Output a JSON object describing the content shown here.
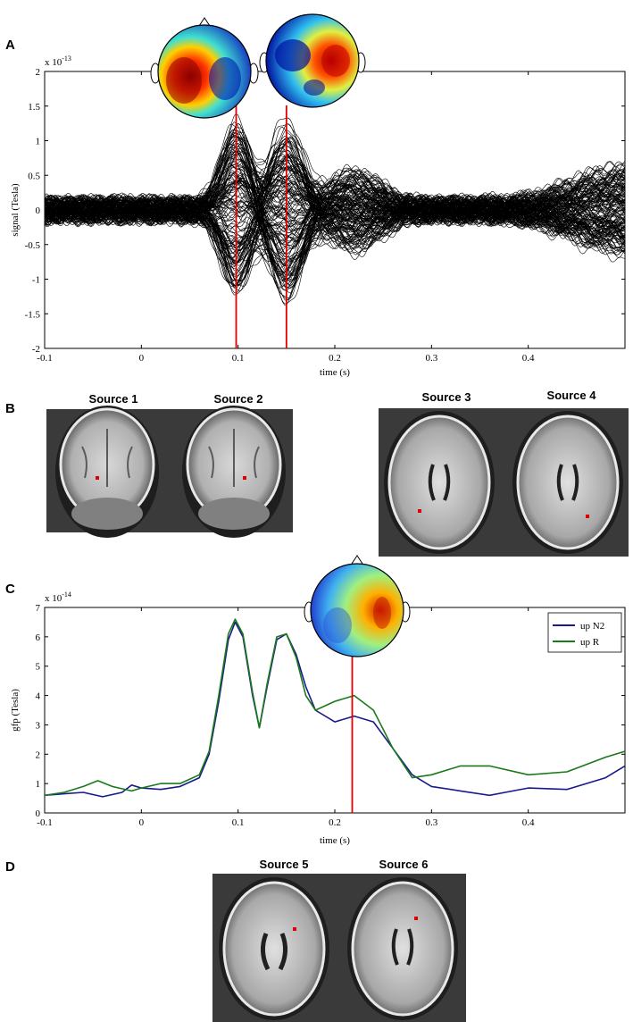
{
  "panels": {
    "a": "A",
    "b": "B",
    "c": "C",
    "d": "D"
  },
  "sources": [
    "Source 1",
    "Source 2",
    "Source 3",
    "Source 4",
    "Source 5",
    "Source 6"
  ],
  "colors": {
    "marker": "#e00000",
    "trace": "#000000",
    "upN2": "#1a1a8c",
    "upR": "#1a7a1a",
    "mri_bg": "#3a3a3a"
  },
  "chart_data": [
    {
      "type": "line",
      "panel": "A",
      "xlabel": "time (s)",
      "ylabel": "signal (Tesla)",
      "exponent_base": "x 10",
      "exponent_power": "-13",
      "xlim": [
        -0.1,
        0.5
      ],
      "ylim": [
        -2,
        2
      ],
      "xticks": [
        -0.1,
        0,
        0.1,
        0.2,
        0.3,
        0.4
      ],
      "yticks": [
        -2,
        -1.5,
        -1,
        -0.5,
        0,
        0.5,
        1,
        1.5,
        2
      ],
      "markers_x": [
        0.098,
        0.15
      ],
      "peaks": [
        {
          "t": 0.098,
          "amp": 1.25
        },
        {
          "t": 0.15,
          "amp": 1.25
        }
      ],
      "trace_count": 150
    },
    {
      "type": "line",
      "panel": "C",
      "xlabel": "time (s)",
      "ylabel": "gfp (Tesla)",
      "exponent_base": "x 10",
      "exponent_power": "-14",
      "xlim": [
        -0.1,
        0.5
      ],
      "ylim": [
        0,
        7
      ],
      "xticks": [
        -0.1,
        0,
        0.1,
        0.2,
        0.3,
        0.4
      ],
      "yticks": [
        0,
        1,
        2,
        3,
        4,
        5,
        6,
        7
      ],
      "markers_x": [
        0.218
      ],
      "legend_position": "top-right",
      "series": [
        {
          "name": "up N2",
          "color": "#1a1a8c",
          "x": [
            -0.1,
            -0.08,
            -0.06,
            -0.04,
            -0.02,
            -0.01,
            0.0,
            0.02,
            0.04,
            0.06,
            0.07,
            0.08,
            0.09,
            0.097,
            0.105,
            0.115,
            0.122,
            0.13,
            0.14,
            0.15,
            0.16,
            0.17,
            0.18,
            0.2,
            0.22,
            0.24,
            0.26,
            0.28,
            0.3,
            0.33,
            0.36,
            0.4,
            0.44,
            0.48,
            0.5
          ],
          "y": [
            0.6,
            0.65,
            0.7,
            0.55,
            0.7,
            0.95,
            0.85,
            0.8,
            0.9,
            1.2,
            2.0,
            3.8,
            5.9,
            6.5,
            6.0,
            4.0,
            2.9,
            4.3,
            5.9,
            6.1,
            5.4,
            4.3,
            3.5,
            3.1,
            3.3,
            3.1,
            2.2,
            1.3,
            0.9,
            0.75,
            0.6,
            0.85,
            0.8,
            1.2,
            1.6
          ]
        },
        {
          "name": "up R",
          "color": "#1a7a1a",
          "x": [
            -0.1,
            -0.08,
            -0.06,
            -0.045,
            -0.03,
            -0.01,
            0.0,
            0.02,
            0.04,
            0.06,
            0.07,
            0.08,
            0.09,
            0.097,
            0.105,
            0.115,
            0.122,
            0.13,
            0.14,
            0.15,
            0.16,
            0.17,
            0.18,
            0.2,
            0.22,
            0.24,
            0.26,
            0.28,
            0.3,
            0.33,
            0.36,
            0.4,
            0.44,
            0.48,
            0.5
          ],
          "y": [
            0.6,
            0.7,
            0.9,
            1.1,
            0.9,
            0.75,
            0.85,
            1.0,
            1.0,
            1.3,
            2.1,
            4.0,
            6.1,
            6.6,
            6.1,
            4.1,
            2.9,
            4.4,
            6.0,
            6.1,
            5.3,
            4.0,
            3.5,
            3.8,
            4.0,
            3.5,
            2.2,
            1.2,
            1.3,
            1.6,
            1.6,
            1.3,
            1.4,
            1.9,
            2.1
          ]
        }
      ]
    }
  ]
}
